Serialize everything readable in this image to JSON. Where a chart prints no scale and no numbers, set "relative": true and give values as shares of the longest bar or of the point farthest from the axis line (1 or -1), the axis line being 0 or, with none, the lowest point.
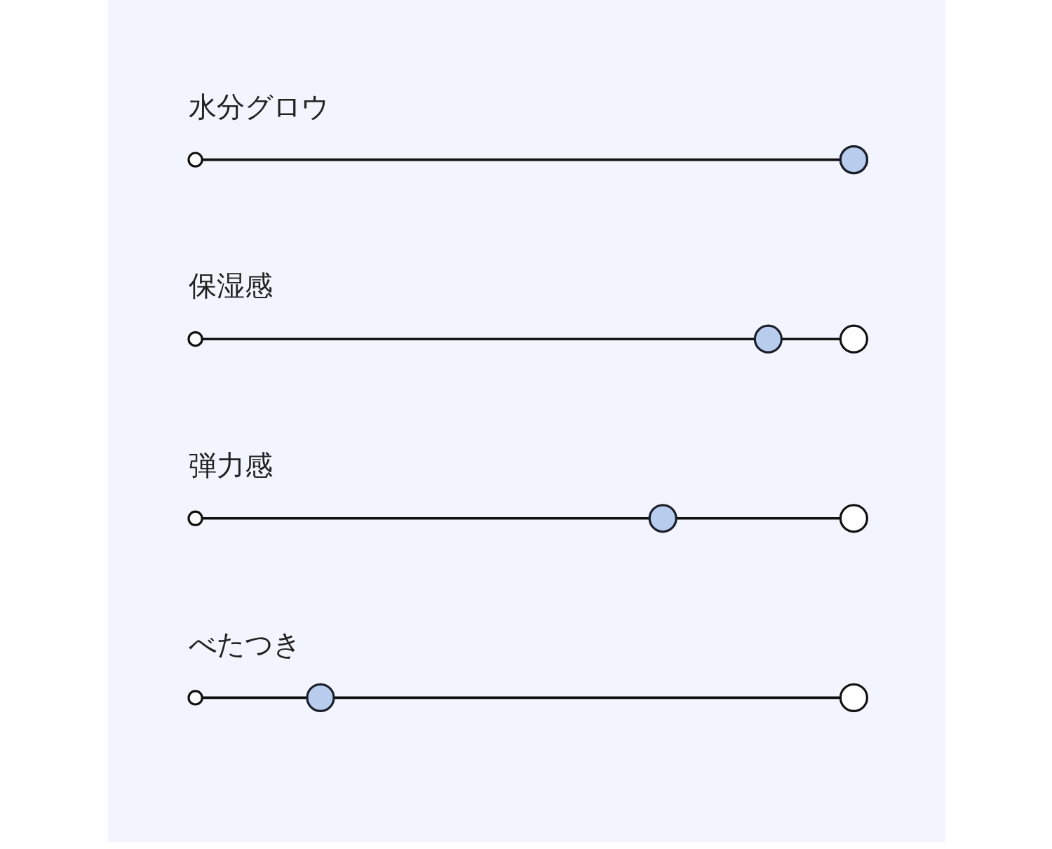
{
  "chart_data": {
    "type": "scatter",
    "orientation": "horizontal",
    "relative": true,
    "marker": "circle",
    "categories": [
      "水分グロウ",
      "保湿感",
      "弾力感",
      "べたつき"
    ],
    "series": [
      {
        "color": "#b8cdee",
        "values": [
          1,
          0.87,
          0.71,
          0.19
        ]
      }
    ]
  }
}
